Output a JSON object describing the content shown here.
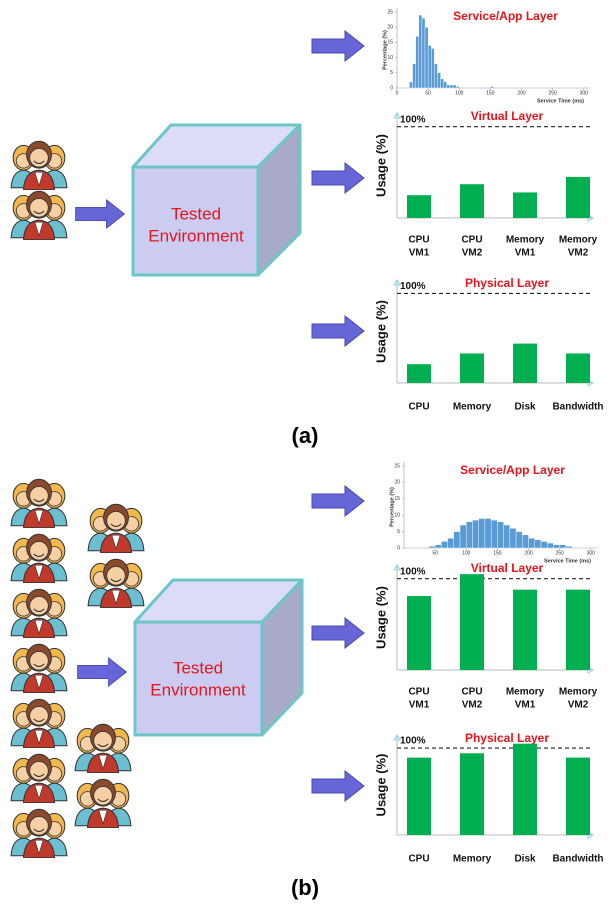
{
  "panels": [
    {
      "label": "(a)",
      "environment": [
        "Tested",
        "Environment"
      ],
      "charts": [
        {
          "type": "histogram",
          "title": "Service/App Layer",
          "xlabel": "Service Time (ms)",
          "ylabel": "Percentage (%)",
          "bins": [
            20,
            25,
            30,
            35,
            40,
            45,
            50,
            55,
            60,
            65,
            70,
            75,
            80,
            85,
            90,
            95,
            100,
            105,
            110,
            115,
            120,
            125,
            130,
            135,
            140,
            145,
            150,
            155
          ],
          "counts": [
            2,
            8,
            17,
            24,
            23,
            20,
            14,
            13,
            8,
            5,
            3,
            2,
            1,
            1,
            1,
            0.5,
            0,
            0,
            0,
            0,
            0,
            0,
            0,
            0,
            0,
            0,
            0.5
          ],
          "color": "#5b9bd5",
          "xlim": [
            0,
            310
          ],
          "ylim": [
            0,
            25
          ],
          "xticks": [
            0,
            50,
            100,
            150,
            200,
            250,
            300
          ],
          "yticks": [
            0,
            5,
            10,
            15,
            20,
            25
          ]
        },
        {
          "type": "bar",
          "title": "Virtual Layer",
          "ylabel": "Usage (%)",
          "reference": {
            "value": 100,
            "label": "100%"
          },
          "categories": [
            [
              "CPU",
              "VM1"
            ],
            [
              "CPU",
              "VM2"
            ],
            [
              "Memory",
              "VM1"
            ],
            [
              "Memory",
              "VM2"
            ]
          ],
          "values": [
            25,
            37,
            28,
            45
          ],
          "color": "#00b050",
          "ylim": [
            0,
            115
          ]
        },
        {
          "type": "bar",
          "title": "Physical Layer",
          "ylabel": "Usage (%)",
          "reference": {
            "value": 100,
            "label": "100%"
          },
          "categories": [
            "CPU",
            "Memory",
            "Disk",
            "Bandwidth"
          ],
          "values": [
            21,
            33,
            44,
            33
          ],
          "color": "#00b050",
          "ylim": [
            0,
            115
          ]
        }
      ]
    },
    {
      "label": "(b)",
      "environment": [
        "Tested",
        "Environment"
      ],
      "charts": [
        {
          "type": "histogram",
          "title": "Service/App Layer",
          "xlabel": "Service Time (ms)",
          "ylabel": "Percentage (%)",
          "bins": [
            40,
            50,
            60,
            70,
            80,
            90,
            100,
            110,
            120,
            130,
            140,
            150,
            160,
            170,
            180,
            190,
            200,
            210,
            220,
            230,
            240,
            250,
            260,
            270
          ],
          "counts": [
            0.5,
            1,
            2,
            3,
            5,
            7,
            8,
            8.5,
            9,
            9,
            8.5,
            8,
            7,
            6,
            5,
            4,
            3,
            2.5,
            2,
            1.5,
            1,
            1,
            0.5
          ],
          "color": "#5b9bd5",
          "xlim": [
            0,
            310
          ],
          "ylim": [
            0,
            25
          ],
          "xticks": [
            50,
            100,
            150,
            200,
            250,
            300
          ],
          "yticks": [
            0,
            5,
            10,
            15,
            20,
            25
          ]
        },
        {
          "type": "bar",
          "title": "Virtual Layer",
          "ylabel": "Usage (%)",
          "reference": {
            "value": 100,
            "label": "100%"
          },
          "categories": [
            [
              "CPU",
              "VM1"
            ],
            [
              "CPU",
              "VM2"
            ],
            [
              "Memory",
              "VM1"
            ],
            [
              "Memory",
              "VM2"
            ]
          ],
          "values": [
            81,
            105,
            88,
            88
          ],
          "color": "#00b050",
          "ylim": [
            0,
            115
          ]
        },
        {
          "type": "bar",
          "title": "Physical Layer",
          "ylabel": "Usage (%)",
          "reference": {
            "value": 100,
            "label": "100%"
          },
          "categories": [
            "CPU",
            "Memory",
            "Disk",
            "Bandwidth"
          ],
          "values": [
            89,
            94,
            105,
            89
          ],
          "color": "#00b050",
          "ylim": [
            0,
            115
          ]
        }
      ]
    }
  ]
}
